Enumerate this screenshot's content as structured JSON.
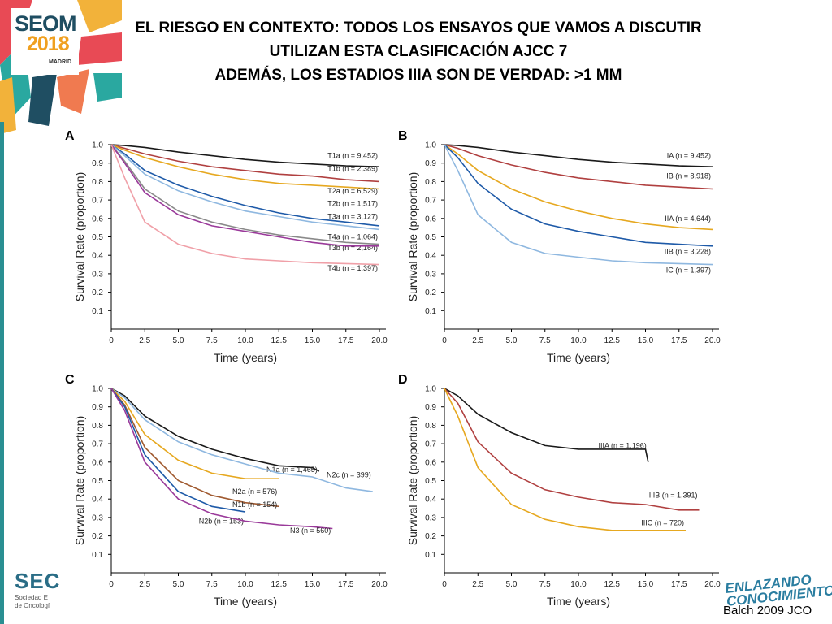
{
  "header": {
    "title_lines": [
      "EL RIESGO EN CONTEXTO: TODOS LOS ENSAYOS QUE VAMOS A DISCUTIR",
      "UTILIZAN ESTA CLASIFICACIÓN AJCC 7",
      "ADEMÁS, LOS ESTADIOS IIIA SON DE VERDAD: >1 MM"
    ],
    "logo": {
      "name": "SEOM",
      "year": "2018",
      "city": "MADRID"
    }
  },
  "footer": {
    "org": "SEC",
    "org_sub": [
      "Sociedad E",
      "de Oncologí"
    ],
    "slogan": [
      "ENLAZANDO",
      "CONOCIMIENTO"
    ],
    "citation": "Balch 2009 JCO"
  },
  "colors": {
    "black": "#1a1a1a",
    "darkred": "#b04040",
    "orange": "#e6a820",
    "blue": "#1e5aa8",
    "lightblue": "#8fb8e0",
    "pink": "#f0a0a8",
    "gray": "#8a8a8a",
    "purple": "#9a3a9a",
    "brown": "#a05a30",
    "red": "#c85050"
  },
  "chart_data": [
    {
      "type": "line",
      "panel": "A",
      "xlabel": "Time (years)",
      "ylabel": "Survival Rate (proportion)",
      "xlim": [
        0,
        20
      ],
      "ylim": [
        0,
        1
      ],
      "xticks": [
        "0",
        "2.5",
        "5.0",
        "7.5",
        "10.0",
        "12.5",
        "15.0",
        "17.5",
        "20.0"
      ],
      "yticks": [
        "0.1",
        "0.2",
        "0.3",
        "0.4",
        "0.5",
        "0.6",
        "0.7",
        "0.8",
        "0.9",
        "1.0"
      ],
      "series": [
        {
          "name": "T1a (n = 9,452)",
          "color": "#1a1a1a",
          "label_y": 0.94,
          "x": [
            0,
            1,
            2.5,
            5,
            7.5,
            10,
            12.5,
            15,
            17.5,
            20
          ],
          "y": [
            1,
            0.995,
            0.985,
            0.96,
            0.94,
            0.92,
            0.905,
            0.895,
            0.885,
            0.88
          ]
        },
        {
          "name": "T1b (n = 2,389)",
          "color": "#b04040",
          "label_y": 0.87,
          "x": [
            0,
            1,
            2.5,
            5,
            7.5,
            10,
            12.5,
            15,
            17.5,
            20
          ],
          "y": [
            1,
            0.98,
            0.95,
            0.91,
            0.88,
            0.86,
            0.84,
            0.83,
            0.81,
            0.8
          ]
        },
        {
          "name": "T2a (n = 6,529)",
          "color": "#e6a820",
          "label_y": 0.75,
          "x": [
            0,
            1,
            2.5,
            5,
            7.5,
            10,
            12.5,
            15,
            17.5,
            20
          ],
          "y": [
            1,
            0.97,
            0.93,
            0.88,
            0.84,
            0.81,
            0.79,
            0.78,
            0.77,
            0.76
          ]
        },
        {
          "name": "T2b (n = 1,517)",
          "color": "#1e5aa8",
          "label_y": 0.68,
          "x": [
            0,
            1,
            2.5,
            5,
            7.5,
            10,
            12.5,
            15,
            17.5,
            20
          ],
          "y": [
            1,
            0.95,
            0.86,
            0.78,
            0.72,
            0.67,
            0.63,
            0.6,
            0.58,
            0.56
          ]
        },
        {
          "name": "T3a (n = 3,127)",
          "color": "#8fb8e0",
          "label_y": 0.61,
          "x": [
            0,
            1,
            2.5,
            5,
            7.5,
            10,
            12.5,
            15,
            17.5,
            20
          ],
          "y": [
            1,
            0.94,
            0.84,
            0.75,
            0.69,
            0.64,
            0.61,
            0.58,
            0.56,
            0.54
          ]
        },
        {
          "name": "T3b (n = 2,164)",
          "color": "#8a8a8a",
          "label_y": 0.44,
          "x": [
            0,
            1,
            2.5,
            5,
            7.5,
            10,
            12.5,
            15,
            17.5,
            20
          ],
          "y": [
            1,
            0.91,
            0.76,
            0.64,
            0.58,
            0.54,
            0.51,
            0.49,
            0.47,
            0.46
          ]
        },
        {
          "name": "T4a (n = 1,064)",
          "color": "#9a3a9a",
          "label_y": 0.5,
          "x": [
            0,
            1,
            2.5,
            5,
            7.5,
            10,
            12.5,
            15,
            17.5,
            20
          ],
          "y": [
            1,
            0.9,
            0.74,
            0.62,
            0.56,
            0.53,
            0.5,
            0.47,
            0.45,
            0.45
          ]
        },
        {
          "name": "T4b (n = 1,397)",
          "color": "#f0a0a8",
          "label_y": 0.33,
          "x": [
            0,
            1,
            2.5,
            5,
            7.5,
            10,
            12.5,
            15,
            17.5,
            20
          ],
          "y": [
            1,
            0.82,
            0.58,
            0.46,
            0.41,
            0.38,
            0.37,
            0.36,
            0.355,
            0.35
          ]
        }
      ]
    },
    {
      "type": "line",
      "panel": "B",
      "xlabel": "Time (years)",
      "ylabel": "Survival Rate (proportion)",
      "xlim": [
        0,
        20
      ],
      "ylim": [
        0,
        1
      ],
      "xticks": [
        "0",
        "2.5",
        "5.0",
        "7.5",
        "10.0",
        "12.5",
        "15.0",
        "17.5",
        "20.0"
      ],
      "yticks": [
        "0.1",
        "0.2",
        "0.3",
        "0.4",
        "0.5",
        "0.6",
        "0.7",
        "0.8",
        "0.9",
        "1.0"
      ],
      "series": [
        {
          "name": "IA (n = 9,452)",
          "color": "#1a1a1a",
          "label_y": 0.94,
          "x": [
            0,
            1,
            2.5,
            5,
            7.5,
            10,
            12.5,
            15,
            17.5,
            20
          ],
          "y": [
            1,
            0.995,
            0.985,
            0.96,
            0.94,
            0.92,
            0.905,
            0.895,
            0.885,
            0.88
          ]
        },
        {
          "name": "IB (n = 8,918)",
          "color": "#b04040",
          "label_y": 0.83,
          "x": [
            0,
            1,
            2.5,
            5,
            7.5,
            10,
            12.5,
            15,
            17.5,
            20
          ],
          "y": [
            1,
            0.98,
            0.94,
            0.89,
            0.85,
            0.82,
            0.8,
            0.78,
            0.77,
            0.76
          ]
        },
        {
          "name": "IIA (n = 4,644)",
          "color": "#e6a820",
          "label_y": 0.6,
          "x": [
            0,
            1,
            2.5,
            5,
            7.5,
            10,
            12.5,
            15,
            17.5,
            20
          ],
          "y": [
            1,
            0.95,
            0.86,
            0.76,
            0.69,
            0.64,
            0.6,
            0.57,
            0.55,
            0.54
          ]
        },
        {
          "name": "IIB (n = 3,228)",
          "color": "#1e5aa8",
          "label_y": 0.42,
          "x": [
            0,
            1,
            2.5,
            5,
            7.5,
            10,
            12.5,
            15,
            17.5,
            20
          ],
          "y": [
            1,
            0.93,
            0.79,
            0.65,
            0.57,
            0.53,
            0.5,
            0.47,
            0.46,
            0.45
          ]
        },
        {
          "name": "IIC (n = 1,397)",
          "color": "#8fb8e0",
          "label_y": 0.32,
          "x": [
            0,
            1,
            2.5,
            5,
            7.5,
            10,
            12.5,
            15,
            17.5,
            20
          ],
          "y": [
            1,
            0.86,
            0.62,
            0.47,
            0.41,
            0.39,
            0.37,
            0.36,
            0.355,
            0.35
          ]
        }
      ]
    },
    {
      "type": "line",
      "panel": "C",
      "xlabel": "Time (years)",
      "ylabel": "Survival Rate (proportion)",
      "xlim": [
        0,
        20
      ],
      "ylim": [
        0,
        1
      ],
      "xticks": [
        "0",
        "2.5",
        "5.0",
        "7.5",
        "10.0",
        "12.5",
        "15.0",
        "17.5",
        "20.0"
      ],
      "yticks": [
        "0.1",
        "0.2",
        "0.3",
        "0.4",
        "0.5",
        "0.6",
        "0.7",
        "0.8",
        "0.9",
        "1.0"
      ],
      "series": [
        {
          "name": "N1a (n = 1,465)",
          "color": "#1a1a1a",
          "label_y": 0.56,
          "x": [
            0,
            1,
            2.5,
            5,
            7.5,
            10,
            12.5,
            15,
            15.5
          ],
          "y": [
            1,
            0.96,
            0.85,
            0.74,
            0.67,
            0.62,
            0.58,
            0.57,
            0.55
          ]
        },
        {
          "name": "N2c (n = 399)",
          "color": "#8fb8e0",
          "label_y": 0.53,
          "x": [
            0,
            1,
            2.5,
            5,
            7.5,
            10,
            12.5,
            15,
            17.5,
            19.5
          ],
          "y": [
            1,
            0.95,
            0.83,
            0.71,
            0.64,
            0.59,
            0.54,
            0.52,
            0.46,
            0.44
          ]
        },
        {
          "name": "N2a (n = 576)",
          "color": "#e6a820",
          "label_y": 0.44,
          "x": [
            0,
            1,
            2.5,
            5,
            7.5,
            10,
            12.5
          ],
          "y": [
            1,
            0.93,
            0.75,
            0.61,
            0.54,
            0.51,
            0.51
          ]
        },
        {
          "name": "N1b (n = 154)",
          "color": "#a05a30",
          "label_y": 0.37,
          "x": [
            0,
            1,
            2.5,
            5,
            7.5,
            10,
            12.5
          ],
          "y": [
            1,
            0.91,
            0.68,
            0.5,
            0.42,
            0.38,
            0.36
          ]
        },
        {
          "name": "N2b (n = 153)",
          "color": "#1e5aa8",
          "label_y": 0.28,
          "x": [
            0,
            1,
            2.5,
            5,
            7.5,
            10
          ],
          "y": [
            1,
            0.9,
            0.64,
            0.44,
            0.36,
            0.33
          ]
        },
        {
          "name": "N3 (n = 560)",
          "color": "#9a3a9a",
          "label_y": 0.23,
          "x": [
            0,
            1,
            2.5,
            5,
            7.5,
            10,
            12.5,
            15,
            16.5
          ],
          "y": [
            1,
            0.88,
            0.6,
            0.4,
            0.32,
            0.28,
            0.26,
            0.25,
            0.24
          ]
        }
      ]
    },
    {
      "type": "line",
      "panel": "D",
      "xlabel": "Time (years)",
      "ylabel": "Survival Rate (proportion)",
      "xlim": [
        0,
        20
      ],
      "ylim": [
        0,
        1
      ],
      "xticks": [
        "0",
        "2.5",
        "5.0",
        "7.5",
        "10.0",
        "12.5",
        "15.0",
        "17.5",
        "20.0"
      ],
      "yticks": [
        "0.1",
        "0.2",
        "0.3",
        "0.4",
        "0.5",
        "0.6",
        "0.7",
        "0.8",
        "0.9",
        "1.0"
      ],
      "series": [
        {
          "name": "IIIA (n = 1,196)",
          "color": "#1a1a1a",
          "label_y": 0.69,
          "x": [
            0,
            1,
            2.5,
            5,
            7.5,
            10,
            12.5,
            15,
            15.2
          ],
          "y": [
            1,
            0.96,
            0.86,
            0.76,
            0.69,
            0.67,
            0.67,
            0.67,
            0.6
          ]
        },
        {
          "name": "IIIB (n = 1,391)",
          "color": "#b04040",
          "label_y": 0.42,
          "x": [
            0,
            1,
            2.5,
            5,
            7.5,
            10,
            12.5,
            15,
            17.5,
            19
          ],
          "y": [
            1,
            0.92,
            0.71,
            0.54,
            0.45,
            0.41,
            0.38,
            0.37,
            0.34,
            0.34
          ]
        },
        {
          "name": "IIIC (n = 720)",
          "color": "#e6a820",
          "label_y": 0.27,
          "x": [
            0,
            1,
            2.5,
            5,
            7.5,
            10,
            12.5,
            15,
            17.5,
            18
          ],
          "y": [
            1,
            0.85,
            0.57,
            0.37,
            0.29,
            0.25,
            0.23,
            0.23,
            0.23,
            0.23
          ]
        }
      ]
    }
  ]
}
